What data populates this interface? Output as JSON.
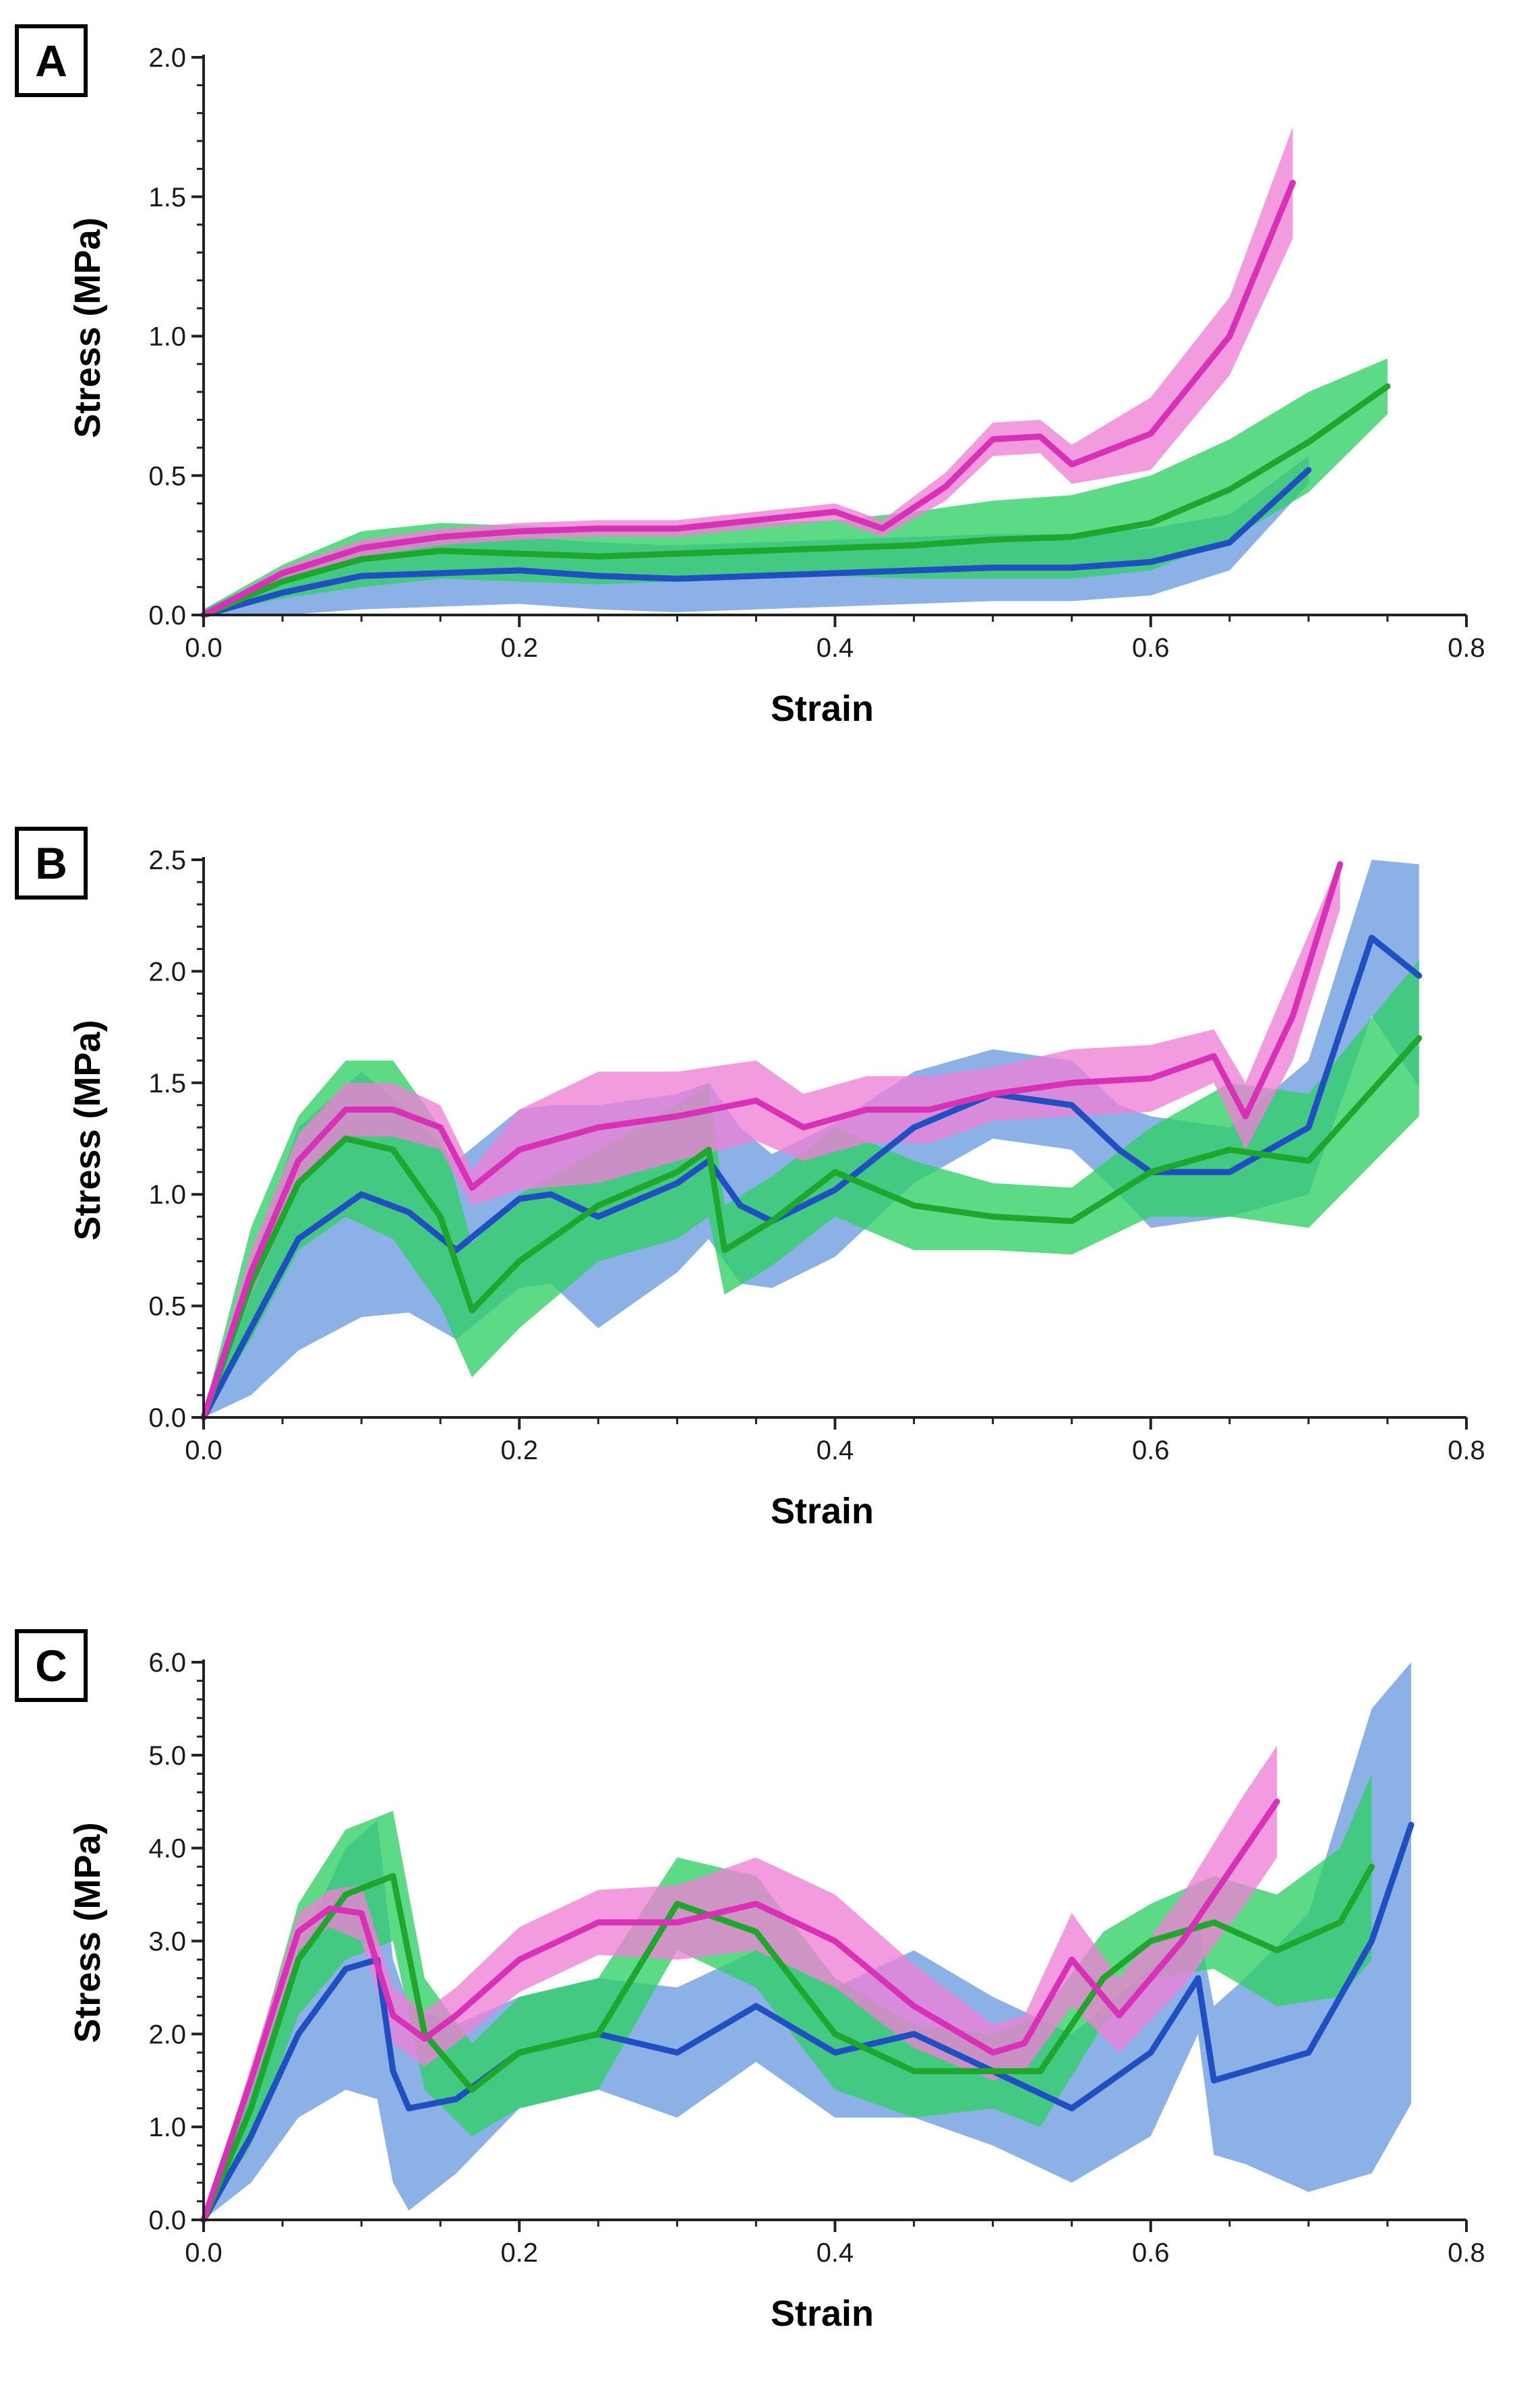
{
  "colors": {
    "blue": "#1f4fc0",
    "blue_band": "#6a9be0",
    "green": "#1fa62c",
    "green_band": "#2fcf64",
    "magenta": "#d830b6",
    "magenta_band": "#ee80d6"
  },
  "chart_data": [
    {
      "type": "line",
      "panel_label": "A",
      "xlabel": "Strain",
      "ylabel": "Stress (MPa)",
      "xlim": [
        0,
        0.8
      ],
      "ylim": [
        0,
        2.0
      ],
      "xticks": [
        "0.0",
        "0.2",
        "0.4",
        "0.6",
        "0.8"
      ],
      "yticks": [
        "0.0",
        "0.5",
        "1.0",
        "1.5",
        "2.0"
      ],
      "series": [
        {
          "name": "blue",
          "x": [
            0,
            0.05,
            0.1,
            0.15,
            0.2,
            0.25,
            0.3,
            0.35,
            0.4,
            0.45,
            0.5,
            0.55,
            0.6,
            0.65,
            0.7
          ],
          "y": [
            0,
            0.08,
            0.14,
            0.15,
            0.16,
            0.14,
            0.13,
            0.14,
            0.15,
            0.16,
            0.17,
            0.17,
            0.19,
            0.26,
            0.52
          ],
          "band": [
            0.02,
            0.08,
            0.12,
            0.12,
            0.12,
            0.12,
            0.12,
            0.12,
            0.12,
            0.12,
            0.12,
            0.12,
            0.12,
            0.1,
            0.05
          ]
        },
        {
          "name": "green",
          "x": [
            0,
            0.05,
            0.1,
            0.15,
            0.2,
            0.25,
            0.3,
            0.35,
            0.4,
            0.45,
            0.5,
            0.55,
            0.6,
            0.65,
            0.7,
            0.75
          ],
          "y": [
            0,
            0.12,
            0.2,
            0.23,
            0.22,
            0.21,
            0.22,
            0.23,
            0.24,
            0.25,
            0.27,
            0.28,
            0.33,
            0.45,
            0.62,
            0.82
          ],
          "band": [
            0.02,
            0.06,
            0.1,
            0.1,
            0.1,
            0.1,
            0.1,
            0.1,
            0.1,
            0.12,
            0.14,
            0.15,
            0.17,
            0.18,
            0.18,
            0.1
          ]
        },
        {
          "name": "magenta",
          "x": [
            0,
            0.05,
            0.1,
            0.15,
            0.2,
            0.25,
            0.3,
            0.35,
            0.4,
            0.43,
            0.47,
            0.5,
            0.53,
            0.55,
            0.6,
            0.65,
            0.69
          ],
          "y": [
            0,
            0.15,
            0.24,
            0.28,
            0.3,
            0.31,
            0.31,
            0.34,
            0.37,
            0.31,
            0.46,
            0.63,
            0.64,
            0.54,
            0.65,
            1.0,
            1.55
          ],
          "band": [
            0.01,
            0.02,
            0.03,
            0.03,
            0.03,
            0.03,
            0.03,
            0.03,
            0.03,
            0.03,
            0.05,
            0.06,
            0.06,
            0.07,
            0.13,
            0.14,
            0.2
          ]
        }
      ]
    },
    {
      "type": "line",
      "panel_label": "B",
      "xlabel": "Strain",
      "ylabel": "Stress (MPa)",
      "xlim": [
        0,
        0.8
      ],
      "ylim": [
        0,
        2.5
      ],
      "xticks": [
        "0.0",
        "0.2",
        "0.4",
        "0.6",
        "0.8"
      ],
      "yticks": [
        "0.0",
        "0.5",
        "1.0",
        "1.5",
        "2.0",
        "2.5"
      ],
      "series": [
        {
          "name": "blue",
          "x": [
            0,
            0.03,
            0.06,
            0.1,
            0.13,
            0.16,
            0.2,
            0.22,
            0.25,
            0.3,
            0.32,
            0.34,
            0.36,
            0.4,
            0.45,
            0.5,
            0.55,
            0.58,
            0.6,
            0.65,
            0.7,
            0.74,
            0.77
          ],
          "y": [
            0,
            0.4,
            0.8,
            1.0,
            0.92,
            0.75,
            0.98,
            1.0,
            0.9,
            1.05,
            1.15,
            0.95,
            0.88,
            1.02,
            1.3,
            1.45,
            1.4,
            1.2,
            1.1,
            1.1,
            1.3,
            2.15,
            1.98
          ],
          "band": [
            0.02,
            0.3,
            0.5,
            0.55,
            0.45,
            0.4,
            0.4,
            0.4,
            0.5,
            0.4,
            0.35,
            0.35,
            0.3,
            0.3,
            0.25,
            0.2,
            0.2,
            0.2,
            0.25,
            0.2,
            0.3,
            0.35,
            0.5
          ]
        },
        {
          "name": "green",
          "x": [
            0,
            0.03,
            0.06,
            0.09,
            0.12,
            0.15,
            0.17,
            0.2,
            0.25,
            0.3,
            0.32,
            0.33,
            0.36,
            0.4,
            0.45,
            0.5,
            0.55,
            0.6,
            0.65,
            0.7,
            0.77
          ],
          "y": [
            0,
            0.6,
            1.05,
            1.25,
            1.2,
            0.9,
            0.48,
            0.7,
            0.95,
            1.1,
            1.2,
            0.75,
            0.88,
            1.1,
            0.95,
            0.9,
            0.88,
            1.1,
            1.2,
            1.15,
            1.7
          ],
          "band": [
            0.02,
            0.25,
            0.3,
            0.35,
            0.4,
            0.4,
            0.3,
            0.3,
            0.25,
            0.3,
            0.3,
            0.2,
            0.2,
            0.2,
            0.2,
            0.15,
            0.15,
            0.2,
            0.3,
            0.3,
            0.35
          ]
        },
        {
          "name": "magenta",
          "x": [
            0,
            0.03,
            0.06,
            0.09,
            0.12,
            0.15,
            0.17,
            0.2,
            0.25,
            0.3,
            0.35,
            0.38,
            0.42,
            0.46,
            0.5,
            0.55,
            0.6,
            0.64,
            0.66,
            0.69,
            0.72
          ],
          "y": [
            0,
            0.65,
            1.15,
            1.38,
            1.38,
            1.3,
            1.03,
            1.2,
            1.3,
            1.35,
            1.42,
            1.3,
            1.38,
            1.38,
            1.45,
            1.5,
            1.52,
            1.62,
            1.35,
            1.8,
            2.48
          ],
          "band": [
            0.02,
            0.1,
            0.12,
            0.12,
            0.12,
            0.1,
            0.08,
            0.18,
            0.25,
            0.2,
            0.18,
            0.15,
            0.15,
            0.15,
            0.12,
            0.15,
            0.15,
            0.12,
            0.15,
            0.2,
            0.2
          ]
        }
      ]
    },
    {
      "type": "line",
      "panel_label": "C",
      "xlabel": "Strain",
      "ylabel": "Stress (MPa)",
      "xlim": [
        0,
        0.8
      ],
      "ylim": [
        0,
        6.0
      ],
      "xticks": [
        "0.0",
        "0.2",
        "0.4",
        "0.6",
        "0.8"
      ],
      "yticks": [
        "0.0",
        "1.0",
        "2.0",
        "3.0",
        "4.0",
        "5.0",
        "6.0"
      ],
      "series": [
        {
          "name": "blue",
          "x": [
            0,
            0.03,
            0.06,
            0.09,
            0.11,
            0.12,
            0.13,
            0.16,
            0.2,
            0.25,
            0.3,
            0.35,
            0.4,
            0.45,
            0.5,
            0.55,
            0.6,
            0.63,
            0.64,
            0.66,
            0.7,
            0.74,
            0.765
          ],
          "y": [
            0,
            0.9,
            2.0,
            2.7,
            2.8,
            1.6,
            1.2,
            1.3,
            1.8,
            2.0,
            1.8,
            2.3,
            1.8,
            2.0,
            1.6,
            1.2,
            1.8,
            2.6,
            1.5,
            1.6,
            1.8,
            3.0,
            4.25
          ],
          "band": [
            0.05,
            0.5,
            0.9,
            1.3,
            1.5,
            1.2,
            1.1,
            0.8,
            0.6,
            0.6,
            0.7,
            0.6,
            0.7,
            0.9,
            0.8,
            0.8,
            0.9,
            0.6,
            0.8,
            1.0,
            1.5,
            2.5,
            3.0
          ]
        },
        {
          "name": "green",
          "x": [
            0,
            0.03,
            0.06,
            0.09,
            0.12,
            0.14,
            0.17,
            0.2,
            0.25,
            0.3,
            0.35,
            0.4,
            0.45,
            0.5,
            0.53,
            0.57,
            0.6,
            0.64,
            0.68,
            0.72,
            0.74
          ],
          "y": [
            0,
            1.2,
            2.8,
            3.5,
            3.7,
            2.0,
            1.4,
            1.8,
            2.0,
            3.4,
            3.1,
            2.0,
            1.6,
            1.6,
            1.6,
            2.6,
            3.0,
            3.2,
            2.9,
            3.2,
            3.8
          ],
          "band": [
            0.05,
            0.4,
            0.6,
            0.7,
            0.7,
            0.6,
            0.5,
            0.6,
            0.6,
            0.5,
            0.6,
            0.6,
            0.5,
            0.4,
            0.6,
            0.5,
            0.4,
            0.5,
            0.6,
            0.8,
            1.0
          ]
        },
        {
          "name": "magenta",
          "x": [
            0,
            0.03,
            0.06,
            0.08,
            0.1,
            0.12,
            0.14,
            0.16,
            0.2,
            0.25,
            0.3,
            0.35,
            0.4,
            0.45,
            0.5,
            0.52,
            0.55,
            0.58,
            0.62,
            0.66,
            0.68
          ],
          "y": [
            0,
            1.5,
            3.1,
            3.35,
            3.3,
            2.2,
            1.95,
            2.2,
            2.8,
            3.2,
            3.2,
            3.4,
            3.0,
            2.3,
            1.8,
            1.9,
            2.8,
            2.2,
            3.0,
            4.0,
            4.5
          ],
          "band": [
            0.02,
            0.15,
            0.2,
            0.2,
            0.3,
            0.3,
            0.3,
            0.3,
            0.35,
            0.35,
            0.4,
            0.5,
            0.5,
            0.45,
            0.3,
            0.3,
            0.5,
            0.4,
            0.5,
            0.6,
            0.6
          ]
        }
      ]
    }
  ]
}
